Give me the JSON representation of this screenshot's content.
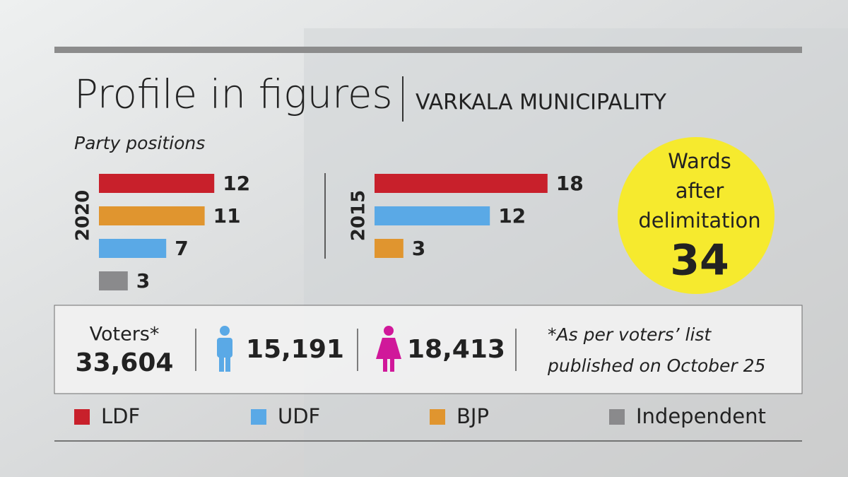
{
  "title": "Profile in figures",
  "subtitle": "VARKALA MUNICIPALITY",
  "section_label": "Party positions",
  "chart_data": [
    {
      "type": "bar",
      "title": "2020",
      "categories": [
        "LDF",
        "BJP",
        "UDF",
        "Independent"
      ],
      "values": [
        12,
        11,
        7,
        3
      ],
      "colors": [
        "#c8202b",
        "#e0952f",
        "#5aa9e6",
        "#8a8a8c"
      ]
    },
    {
      "type": "bar",
      "title": "2015",
      "categories": [
        "LDF",
        "UDF",
        "BJP"
      ],
      "values": [
        18,
        12,
        3
      ],
      "colors": [
        "#c8202b",
        "#5aa9e6",
        "#e0952f"
      ]
    }
  ],
  "wards": {
    "label": "Wards after delimitation",
    "value": 34
  },
  "voters": {
    "label": "Voters*",
    "total": "33,604",
    "male": "15,191",
    "female": "18,413",
    "note": "*As per voters’ list published on October 25"
  },
  "legend": [
    {
      "name": "LDF",
      "color": "#c8202b"
    },
    {
      "name": "UDF",
      "color": "#5aa9e6"
    },
    {
      "name": "BJP",
      "color": "#e0952f"
    },
    {
      "name": "Independent",
      "color": "#8a8a8c"
    }
  ]
}
